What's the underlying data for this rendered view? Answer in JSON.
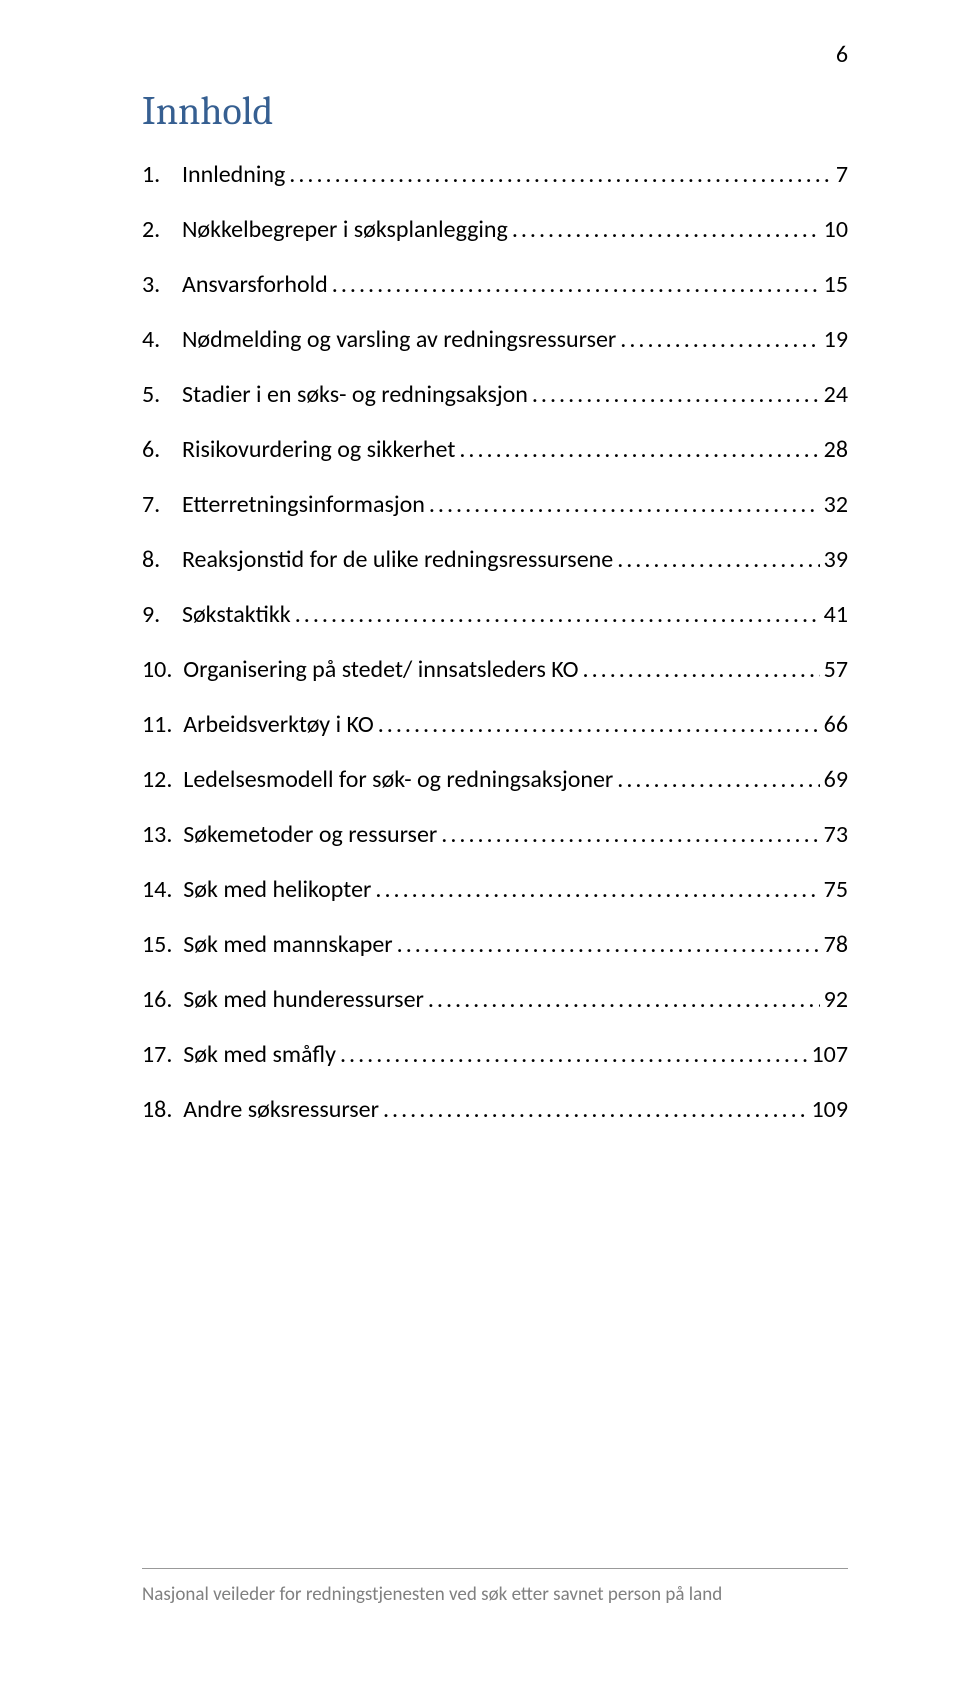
{
  "page_number": "6",
  "title": "Innhold",
  "colors": {
    "title_color": "#365f91",
    "text_color": "#000000",
    "footer_text_color": "#808080",
    "rule_color": "#999999",
    "background": "#ffffff"
  },
  "typography": {
    "title_fontsize_pt": 28,
    "body_fontsize_pt": 16,
    "footer_fontsize_pt": 13,
    "title_font": "Cambria",
    "body_font": "Calibri"
  },
  "toc": {
    "entries": [
      {
        "num": "1.",
        "gap": "    ",
        "text": "Innledning",
        "page": "7"
      },
      {
        "num": "2.",
        "gap": "    ",
        "text": "Nøkkelbegreper i søksplanlegging",
        "page": "10"
      },
      {
        "num": "3.",
        "gap": "    ",
        "text": "Ansvarsforhold",
        "page": "15"
      },
      {
        "num": "4.",
        "gap": "    ",
        "text": "Nødmelding og varsling av redningsressurser",
        "page": "19"
      },
      {
        "num": "5.",
        "gap": "    ",
        "text": "Stadier i en søks- og redningsaksjon",
        "page": "24"
      },
      {
        "num": "6.",
        "gap": "    ",
        "text": "Risikovurdering og sikkerhet",
        "page": "28"
      },
      {
        "num": "7.",
        "gap": "    ",
        "text": "Etterretningsinformasjon",
        "page": "32"
      },
      {
        "num": "8.",
        "gap": "    ",
        "text": "Reaksjonstid for de ulike redningsressursene",
        "page": "39"
      },
      {
        "num": "9.",
        "gap": "    ",
        "text": "Søkstaktikk",
        "page": "41"
      },
      {
        "num": "10.",
        "gap": "  ",
        "text": "Organisering på stedet/ innsatsleders KO",
        "page": "57"
      },
      {
        "num": "11.",
        "gap": "  ",
        "text": "Arbeidsverktøy i KO",
        "page": "66"
      },
      {
        "num": "12.",
        "gap": "  ",
        "text": "Ledelsesmodell for søk- og redningsaksjoner",
        "page": "69"
      },
      {
        "num": "13.",
        "gap": "  ",
        "text": "Søkemetoder og ressurser",
        "page": "73"
      },
      {
        "num": "14.",
        "gap": "  ",
        "text": "Søk med helikopter",
        "page": "75"
      },
      {
        "num": "15.",
        "gap": "  ",
        "text": "Søk med mannskaper",
        "page": "78"
      },
      {
        "num": "16.",
        "gap": "  ",
        "text": "Søk med hunderessurser",
        "page": "92"
      },
      {
        "num": "17.",
        "gap": "  ",
        "text": "Søk med småfly",
        "page": "107"
      },
      {
        "num": "18.",
        "gap": "  ",
        "text": "Andre søksressurser",
        "page": "109"
      }
    ]
  },
  "footer": "Nasjonal veileder for redningstjenesten ved søk etter savnet person på land"
}
